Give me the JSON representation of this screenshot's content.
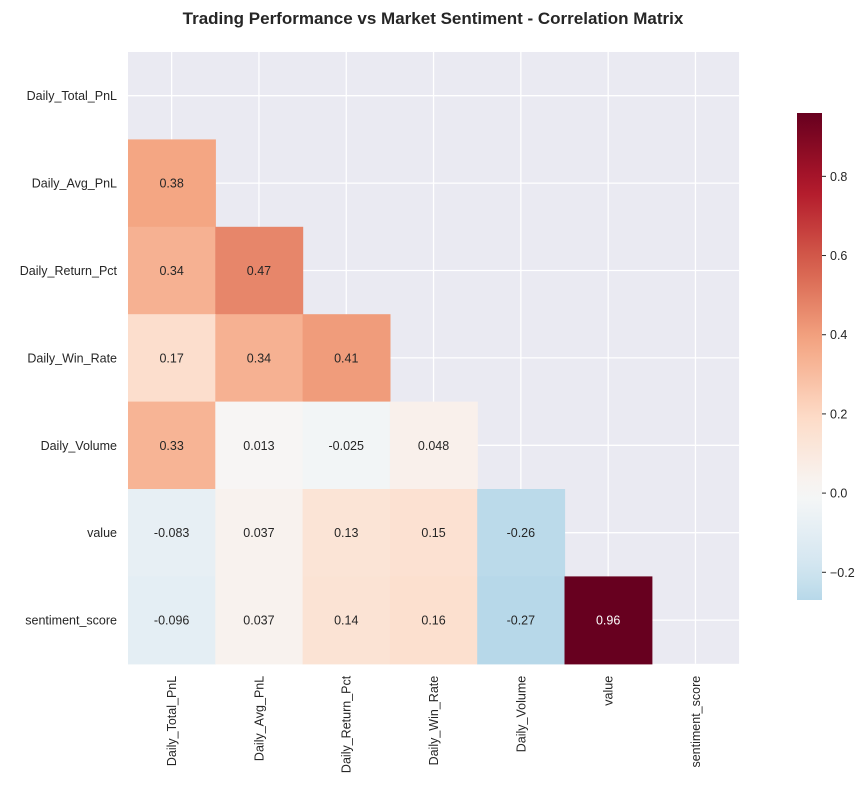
{
  "chart_data": {
    "type": "heatmap",
    "title": "Trading Performance vs Market Sentiment - Correlation Matrix",
    "row_labels": [
      "Daily_Total_PnL",
      "Daily_Avg_PnL",
      "Daily_Return_Pct",
      "Daily_Win_Rate",
      "Daily_Volume",
      "value",
      "sentiment_score"
    ],
    "column_labels": [
      "Daily_Total_PnL",
      "Daily_Avg_PnL",
      "Daily_Return_Pct",
      "Daily_Win_Rate",
      "Daily_Volume",
      "value",
      "sentiment_score"
    ],
    "mask": "upper-triangle-including-diagonal",
    "cells": [
      {
        "row": 1,
        "col": 0,
        "value": 0.38,
        "label": "0.38"
      },
      {
        "row": 2,
        "col": 0,
        "value": 0.34,
        "label": "0.34"
      },
      {
        "row": 2,
        "col": 1,
        "value": 0.47,
        "label": "0.47"
      },
      {
        "row": 3,
        "col": 0,
        "value": 0.17,
        "label": "0.17"
      },
      {
        "row": 3,
        "col": 1,
        "value": 0.34,
        "label": "0.34"
      },
      {
        "row": 3,
        "col": 2,
        "value": 0.41,
        "label": "0.41"
      },
      {
        "row": 4,
        "col": 0,
        "value": 0.33,
        "label": "0.33"
      },
      {
        "row": 4,
        "col": 1,
        "value": 0.013,
        "label": "0.013"
      },
      {
        "row": 4,
        "col": 2,
        "value": -0.025,
        "label": "-0.025"
      },
      {
        "row": 4,
        "col": 3,
        "value": 0.048,
        "label": "0.048"
      },
      {
        "row": 5,
        "col": 0,
        "value": -0.083,
        "label": "-0.083"
      },
      {
        "row": 5,
        "col": 1,
        "value": 0.037,
        "label": "0.037"
      },
      {
        "row": 5,
        "col": 2,
        "value": 0.13,
        "label": "0.13"
      },
      {
        "row": 5,
        "col": 3,
        "value": 0.15,
        "label": "0.15"
      },
      {
        "row": 5,
        "col": 4,
        "value": -0.26,
        "label": "-0.26"
      },
      {
        "row": 6,
        "col": 0,
        "value": -0.096,
        "label": "-0.096"
      },
      {
        "row": 6,
        "col": 1,
        "value": 0.037,
        "label": "0.037"
      },
      {
        "row": 6,
        "col": 2,
        "value": 0.14,
        "label": "0.14"
      },
      {
        "row": 6,
        "col": 3,
        "value": 0.16,
        "label": "0.16"
      },
      {
        "row": 6,
        "col": 4,
        "value": -0.27,
        "label": "-0.27"
      },
      {
        "row": 6,
        "col": 5,
        "value": 0.96,
        "label": "0.96"
      }
    ],
    "colormap": "RdBu_r",
    "colormap_stops": [
      "#053061",
      "#2166ac",
      "#4393c3",
      "#92c5de",
      "#d1e5f0",
      "#f7f7f7",
      "#fddbc7",
      "#f4a582",
      "#d6604d",
      "#b2182b",
      "#67001f"
    ],
    "center": 0,
    "vmin": -0.27,
    "vmax": 0.96,
    "colorbar": {
      "ticks": [
        -0.2,
        0.0,
        0.2,
        0.4,
        0.6,
        0.8
      ],
      "tick_labels": [
        "−0.2",
        "0.0",
        "0.2",
        "0.4",
        "0.6",
        "0.8"
      ]
    },
    "grid": true,
    "background_color": "#eaeaf2",
    "grid_color": "#ffffff"
  }
}
